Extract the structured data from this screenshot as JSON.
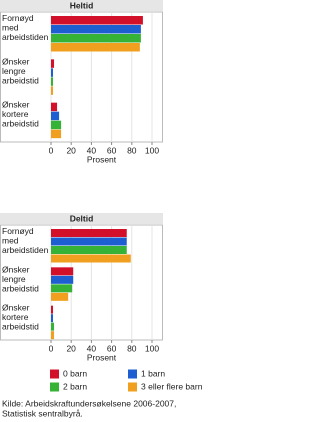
{
  "chart_data": [
    {
      "type": "bar",
      "orientation": "horizontal",
      "title": "Heltid",
      "x_label": "Prosent",
      "categories": [
        "Fornøyd med arbeidstiden",
        "Ønsker lengre arbeidstid",
        "Ønsker kortere arbeidstid"
      ],
      "series": [
        {
          "color": "#d2102a",
          "values": [
            91,
            3,
            6
          ]
        },
        {
          "color": "#1d5fd0",
          "values": [
            89,
            2,
            8
          ]
        },
        {
          "color": "#36b336",
          "values": [
            89,
            2,
            10
          ]
        },
        {
          "color": "#f0a01e",
          "values": [
            88,
            2,
            10
          ]
        }
      ],
      "xlim": [
        0,
        100
      ],
      "xticks": [
        0,
        20,
        40,
        60,
        80,
        100
      ],
      "grid": true
    },
    {
      "type": "bar",
      "orientation": "horizontal",
      "title": "Deltid",
      "x_label": "Prosent",
      "categories": [
        "Fornøyd med arbeidstiden",
        "Ønsker lengre arbeidstid",
        "Ønsker kortere arbeidstid"
      ],
      "series": [
        {
          "name": "0 barn",
          "color": "#d2102a",
          "values": [
            75,
            22,
            2
          ]
        },
        {
          "name": "1 barn",
          "color": "#1d5fd0",
          "values": [
            75,
            22,
            2
          ]
        },
        {
          "name": "2 barn",
          "color": "#36b336",
          "values": [
            75,
            21,
            3
          ]
        },
        {
          "name": "3 eller flere barn",
          "color": "#f0a01e",
          "values": [
            79,
            17,
            3
          ]
        }
      ],
      "xlim": [
        0,
        100
      ],
      "xticks": [
        0,
        20,
        40,
        60,
        80,
        100
      ],
      "grid": true
    }
  ],
  "source": [
    "Kilde: Arbeidskraftundersøkelsene 2006-2007,",
    "Statistisk sentralbyrå."
  ]
}
